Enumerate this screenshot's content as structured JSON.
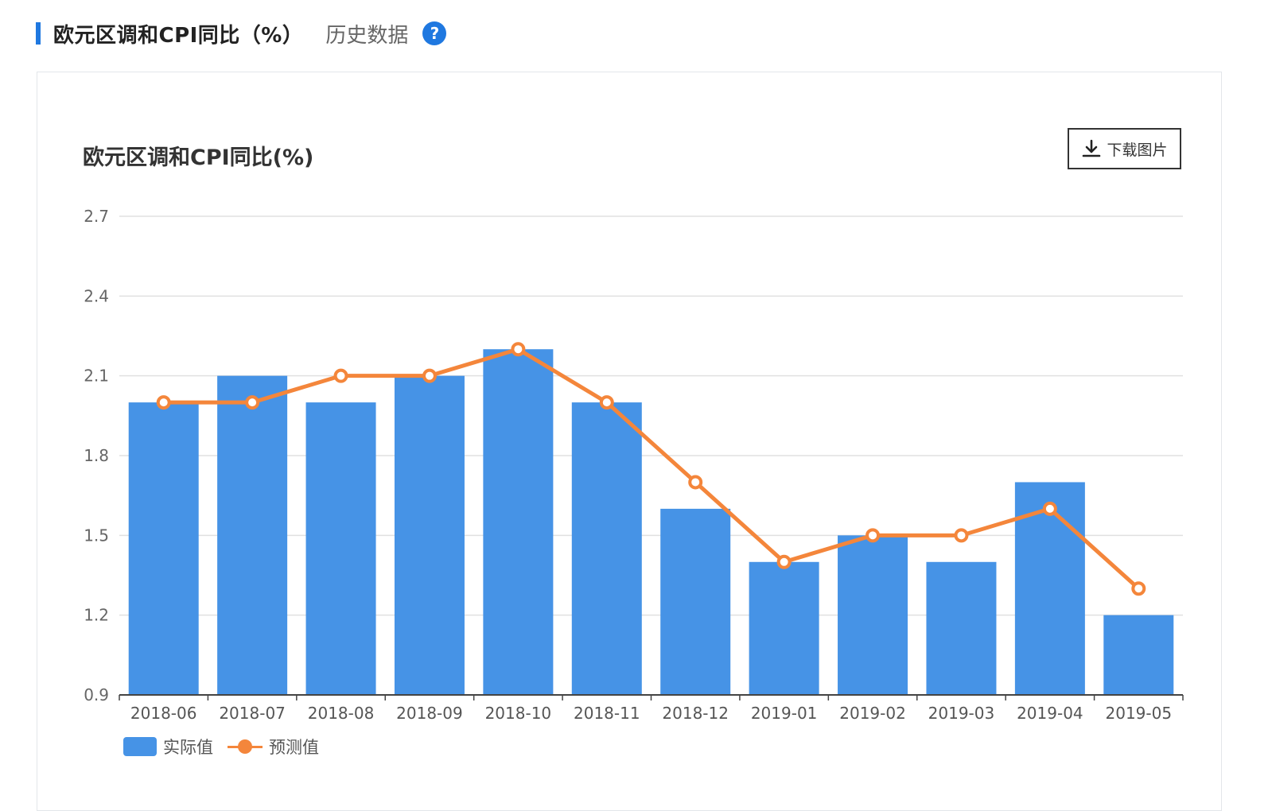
{
  "header": {
    "title": "欧元区调和CPI同比（%）",
    "subtitle": "历史数据",
    "help_icon": "question-circle-icon"
  },
  "toolbar": {
    "download_label": "下载图片",
    "download_icon": "download-icon"
  },
  "colors": {
    "accent": "#1f78e0",
    "bar": "#4693e6",
    "line": "#f4863b",
    "grid": "#e0e0e0"
  },
  "chart_data": {
    "type": "bar",
    "title": "欧元区调和CPI同比(%)",
    "categories": [
      "2018-06",
      "2018-07",
      "2018-08",
      "2018-09",
      "2018-10",
      "2018-11",
      "2018-12",
      "2019-01",
      "2019-02",
      "2019-03",
      "2019-04",
      "2019-05"
    ],
    "series": [
      {
        "name": "实际值",
        "type": "bar",
        "values": [
          2.0,
          2.1,
          2.0,
          2.1,
          2.2,
          2.0,
          1.6,
          1.4,
          1.5,
          1.4,
          1.7,
          1.2
        ]
      },
      {
        "name": "预测值",
        "type": "line",
        "values": [
          2.0,
          2.0,
          2.1,
          2.1,
          2.2,
          2.0,
          1.7,
          1.4,
          1.5,
          1.5,
          1.6,
          1.3
        ]
      }
    ],
    "yticks": [
      "0.9",
      "1.2",
      "1.5",
      "1.8",
      "2.1",
      "2.4",
      "2.7"
    ],
    "ylim": [
      0.9,
      2.7
    ],
    "grid": true,
    "legend": "bottom-left"
  }
}
